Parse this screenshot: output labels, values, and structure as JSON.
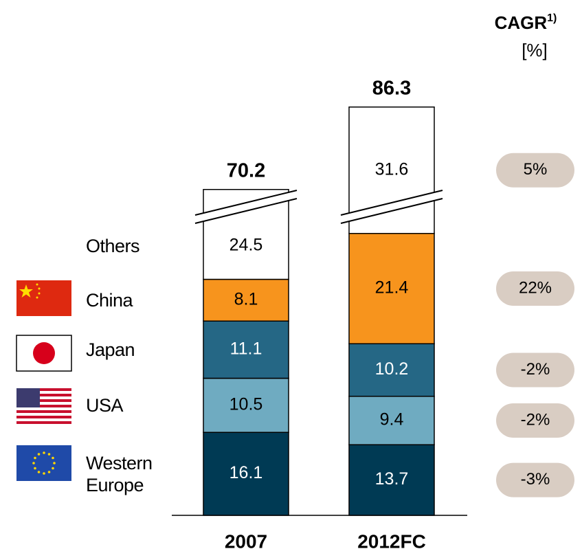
{
  "chart_data": {
    "type": "stacked_bar",
    "categories": [
      "2007",
      "2012FC"
    ],
    "series": [
      {
        "name": "Western Europe",
        "color": "#003a54",
        "label_color": "#ffffff",
        "values": [
          16.1,
          13.7
        ]
      },
      {
        "name": "USA",
        "color": "#6fabc1",
        "label_color": "#000000",
        "values": [
          10.5,
          9.4
        ]
      },
      {
        "name": "Japan",
        "color": "#256785",
        "label_color": "#ffffff",
        "values": [
          11.1,
          10.2
        ]
      },
      {
        "name": "China",
        "color": "#f7941d",
        "label_color": "#000000",
        "values": [
          8.1,
          21.4
        ]
      },
      {
        "name": "Others",
        "color": "#ffffff",
        "label_color": "#000000",
        "values": [
          24.5,
          31.6
        ]
      }
    ],
    "totals": [
      70.2,
      86.3
    ],
    "axis_break": true,
    "cagr": {
      "title": "CAGR",
      "footnote": "1)",
      "unit": "[%]",
      "values": [
        -3,
        -2,
        -2,
        22,
        5
      ],
      "value_labels": [
        "-3%",
        "-2%",
        "-2%",
        "22%",
        "5%"
      ],
      "color": "#d9cdc3"
    }
  }
}
